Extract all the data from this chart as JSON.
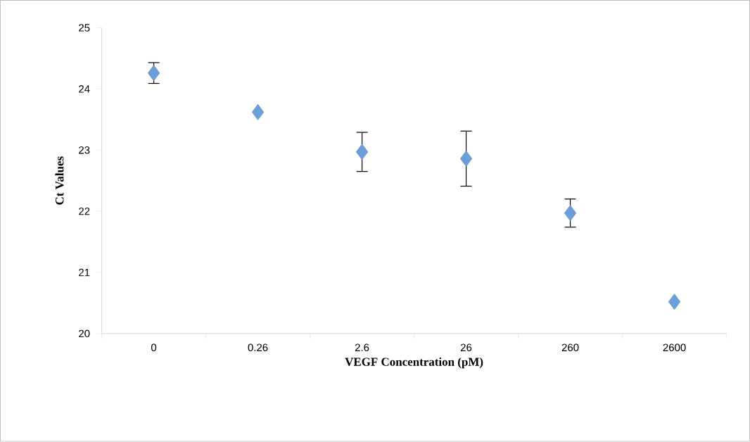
{
  "chart_data": {
    "type": "scatter",
    "xlabel": "VEGF Concentration (pM)",
    "ylabel": "Ct Values",
    "categories": [
      "0",
      "0.26",
      "2.6",
      "26",
      "260",
      "2600"
    ],
    "values": [
      24.26,
      23.62,
      22.97,
      22.86,
      21.97,
      20.52
    ],
    "errors": [
      0.17,
      null,
      0.32,
      0.45,
      0.23,
      null
    ],
    "color": "#6a9fdc",
    "marker": "diamond",
    "ylim": [
      20,
      25
    ],
    "yticks": [
      20,
      21,
      22,
      23,
      24,
      25
    ]
  }
}
